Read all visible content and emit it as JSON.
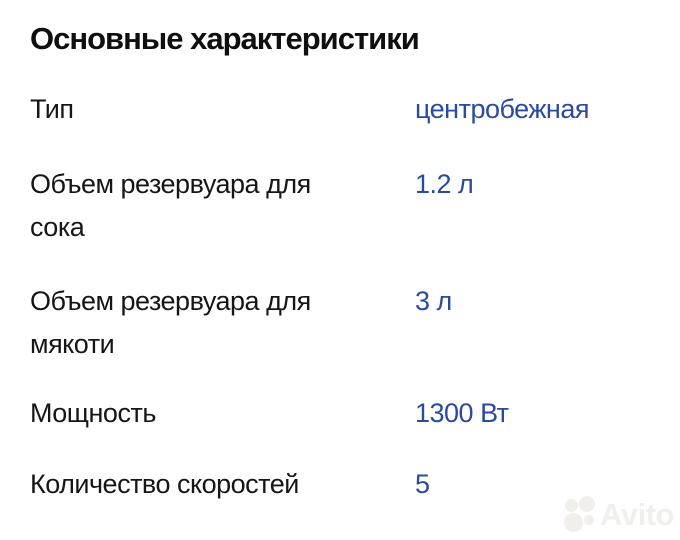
{
  "section": {
    "title": "Основные характеристики",
    "specs": [
      {
        "label": "Тип",
        "value": "центробежная"
      },
      {
        "label": "Объем резервуара для\nсока",
        "value": "1.2 л"
      },
      {
        "label": "Объем резервуара для\nмякоти",
        "value": "3 л"
      },
      {
        "label": "Мощность",
        "value": "1300 Вт"
      },
      {
        "label": "Количество скоростей",
        "value": "5"
      }
    ]
  },
  "watermark": {
    "brand": "Avito",
    "logo_icon": "avito-four-circles-logo"
  },
  "colors": {
    "page_bg": "#ffffff",
    "title_text": "#0f0f0f",
    "label_text": "#161616",
    "value_accent": "#2a4b9d",
    "watermark": "#f0efeb"
  }
}
